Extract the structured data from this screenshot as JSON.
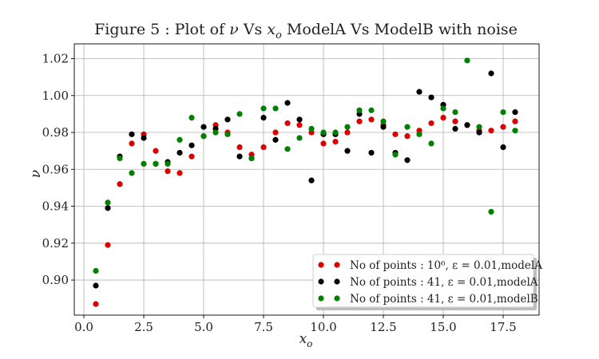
{
  "chart_data": {
    "type": "scatter",
    "title": "Figure 5 : Plot of ν Vs x_o ModelA Vs ModelB with noise",
    "xlabel": "x_o",
    "ylabel": "ν",
    "xlim": [
      -0.4,
      19.0
    ],
    "ylim": [
      0.881,
      1.028
    ],
    "xticks": [
      0.0,
      2.5,
      5.0,
      7.5,
      10.0,
      12.5,
      15.0,
      17.5
    ],
    "xtick_labels": [
      "0.0",
      "2.5",
      "5.0",
      "7.5",
      "10.0",
      "12.5",
      "15.0",
      "17.5"
    ],
    "yticks": [
      0.9,
      0.92,
      0.94,
      0.96,
      0.98,
      1.0,
      1.02
    ],
    "ytick_labels": [
      "0.90",
      "0.92",
      "0.94",
      "0.96",
      "0.98",
      "1.00",
      "1.02"
    ],
    "grid": true,
    "legend_position": "lower-right",
    "series": [
      {
        "name": "No of points : 10⁶, ε = 0.01,modelA",
        "color": "#dd0000",
        "points": [
          [
            0.5,
            0.887
          ],
          [
            1.0,
            0.919
          ],
          [
            1.5,
            0.952
          ],
          [
            2.0,
            0.974
          ],
          [
            2.5,
            0.979
          ],
          [
            3.0,
            0.97
          ],
          [
            3.5,
            0.959
          ],
          [
            4.0,
            0.958
          ],
          [
            4.5,
            0.967
          ],
          [
            5.0,
            0.978
          ],
          [
            5.5,
            0.984
          ],
          [
            6.0,
            0.98
          ],
          [
            6.5,
            0.972
          ],
          [
            7.0,
            0.968
          ],
          [
            7.5,
            0.972
          ],
          [
            8.0,
            0.98
          ],
          [
            8.5,
            0.985
          ],
          [
            9.0,
            0.984
          ],
          [
            9.5,
            0.98
          ],
          [
            10.0,
            0.974
          ],
          [
            10.5,
            0.975
          ],
          [
            11.0,
            0.98
          ],
          [
            11.5,
            0.986
          ],
          [
            12.0,
            0.987
          ],
          [
            12.5,
            0.984
          ],
          [
            13.0,
            0.979
          ],
          [
            13.5,
            0.978
          ],
          [
            14.0,
            0.981
          ],
          [
            14.5,
            0.985
          ],
          [
            15.0,
            0.988
          ],
          [
            15.5,
            0.986
          ],
          [
            16.0,
            0.984
          ],
          [
            16.5,
            0.981
          ],
          [
            17.0,
            0.981
          ],
          [
            17.5,
            0.983
          ],
          [
            18.0,
            0.986
          ]
        ]
      },
      {
        "name": "No of points : 41, ε = 0.01,modelA",
        "color": "#000000",
        "points": [
          [
            0.5,
            0.897
          ],
          [
            1.0,
            0.939
          ],
          [
            1.5,
            0.967
          ],
          [
            2.0,
            0.979
          ],
          [
            2.5,
            0.977
          ],
          [
            3.0,
            0.963
          ],
          [
            3.5,
            0.964
          ],
          [
            4.0,
            0.969
          ],
          [
            4.5,
            0.973
          ],
          [
            5.0,
            0.983
          ],
          [
            5.5,
            0.982
          ],
          [
            6.0,
            0.987
          ],
          [
            6.5,
            0.967
          ],
          [
            7.0,
            0.966
          ],
          [
            7.5,
            0.988
          ],
          [
            8.0,
            0.976
          ],
          [
            8.5,
            0.996
          ],
          [
            9.0,
            0.987
          ],
          [
            9.5,
            0.954
          ],
          [
            10.0,
            0.979
          ],
          [
            10.5,
            0.979
          ],
          [
            11.0,
            0.97
          ],
          [
            11.5,
            0.99
          ],
          [
            12.0,
            0.969
          ],
          [
            12.5,
            0.983
          ],
          [
            13.0,
            0.969
          ],
          [
            13.5,
            0.965
          ],
          [
            14.0,
            1.002
          ],
          [
            14.5,
            0.999
          ],
          [
            15.0,
            0.995
          ],
          [
            15.5,
            0.982
          ],
          [
            16.0,
            0.984
          ],
          [
            16.5,
            0.98
          ],
          [
            17.0,
            1.012
          ],
          [
            17.5,
            0.972
          ],
          [
            18.0,
            0.991
          ]
        ]
      },
      {
        "name": "No of points : 41, ε = 0.01,modelB",
        "color": "#008000",
        "points": [
          [
            0.5,
            0.905
          ],
          [
            1.0,
            0.942
          ],
          [
            1.5,
            0.966
          ],
          [
            2.0,
            0.958
          ],
          [
            2.5,
            0.963
          ],
          [
            3.0,
            0.963
          ],
          [
            3.5,
            0.963
          ],
          [
            4.0,
            0.976
          ],
          [
            4.5,
            0.988
          ],
          [
            5.0,
            0.978
          ],
          [
            5.5,
            0.98
          ],
          [
            6.0,
            0.979
          ],
          [
            6.5,
            0.99
          ],
          [
            7.0,
            0.966
          ],
          [
            7.5,
            0.993
          ],
          [
            8.0,
            0.993
          ],
          [
            8.5,
            0.971
          ],
          [
            9.0,
            0.977
          ],
          [
            9.5,
            0.982
          ],
          [
            10.0,
            0.98
          ],
          [
            10.5,
            0.98
          ],
          [
            11.0,
            0.983
          ],
          [
            11.5,
            0.992
          ],
          [
            12.0,
            0.992
          ],
          [
            12.5,
            0.986
          ],
          [
            13.0,
            0.968
          ],
          [
            13.5,
            0.983
          ],
          [
            14.0,
            0.979
          ],
          [
            14.5,
            0.974
          ],
          [
            15.0,
            0.993
          ],
          [
            15.5,
            0.991
          ],
          [
            16.0,
            1.019
          ],
          [
            16.5,
            0.983
          ],
          [
            17.0,
            0.937
          ],
          [
            17.5,
            0.991
          ],
          [
            18.0,
            0.981
          ]
        ]
      }
    ]
  }
}
